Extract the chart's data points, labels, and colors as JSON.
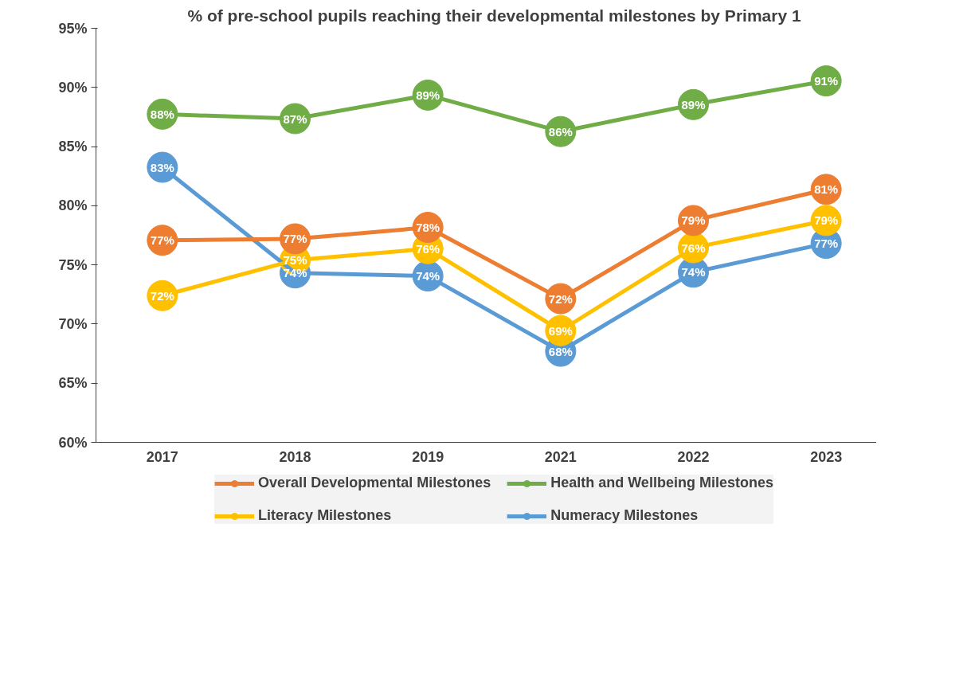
{
  "chart_data": {
    "type": "line",
    "title": "% of pre-school pupils reaching their developmental milestones by Primary 1",
    "categories": [
      "2017",
      "2018",
      "2019",
      "2021",
      "2022",
      "2023"
    ],
    "series": [
      {
        "name": "Overall Developmental Milestones",
        "color": "#ed7d31",
        "values": [
          77.08,
          77.2,
          78.17,
          72.14,
          78.75,
          81.38
        ],
        "value_labels": [
          "77%",
          "77%",
          "78%",
          "72%",
          "79%",
          "81%"
        ]
      },
      {
        "name": "Health and Wellbeing Milestones",
        "color": "#70ad47",
        "values": [
          87.74,
          87.36,
          89.35,
          86.27,
          88.55,
          90.55
        ],
        "value_labels": [
          "88%",
          "87%",
          "89%",
          "86%",
          "89%",
          "91%"
        ]
      },
      {
        "name": "Literacy Milestones",
        "color": "#ffc000",
        "values": [
          72.4,
          75.4,
          76.37,
          69.44,
          76.45,
          78.75
        ],
        "value_labels": [
          "72%",
          "75%",
          "76%",
          "69%",
          "76%",
          "79%"
        ]
      },
      {
        "name": "Numeracy Milestones",
        "color": "#5b9bd5",
        "values": [
          83.25,
          74.32,
          74.06,
          67.7,
          74.38,
          76.82
        ],
        "value_labels": [
          "83%",
          "74%",
          "74%",
          "68%",
          "74%",
          "77%"
        ]
      }
    ],
    "ylim": [
      60,
      95
    ],
    "yticks": [
      {
        "value": 60,
        "label": "60%"
      },
      {
        "value": 65,
        "label": "65%"
      },
      {
        "value": 70,
        "label": "70%"
      },
      {
        "value": 75,
        "label": "75%"
      },
      {
        "value": 80,
        "label": "80%"
      },
      {
        "value": 85,
        "label": "85%"
      },
      {
        "value": 90,
        "label": "90%"
      },
      {
        "value": 95,
        "label": "95%"
      }
    ],
    "grid": false,
    "legend": "bottom",
    "marker": "circle",
    "line_style": "solid"
  }
}
